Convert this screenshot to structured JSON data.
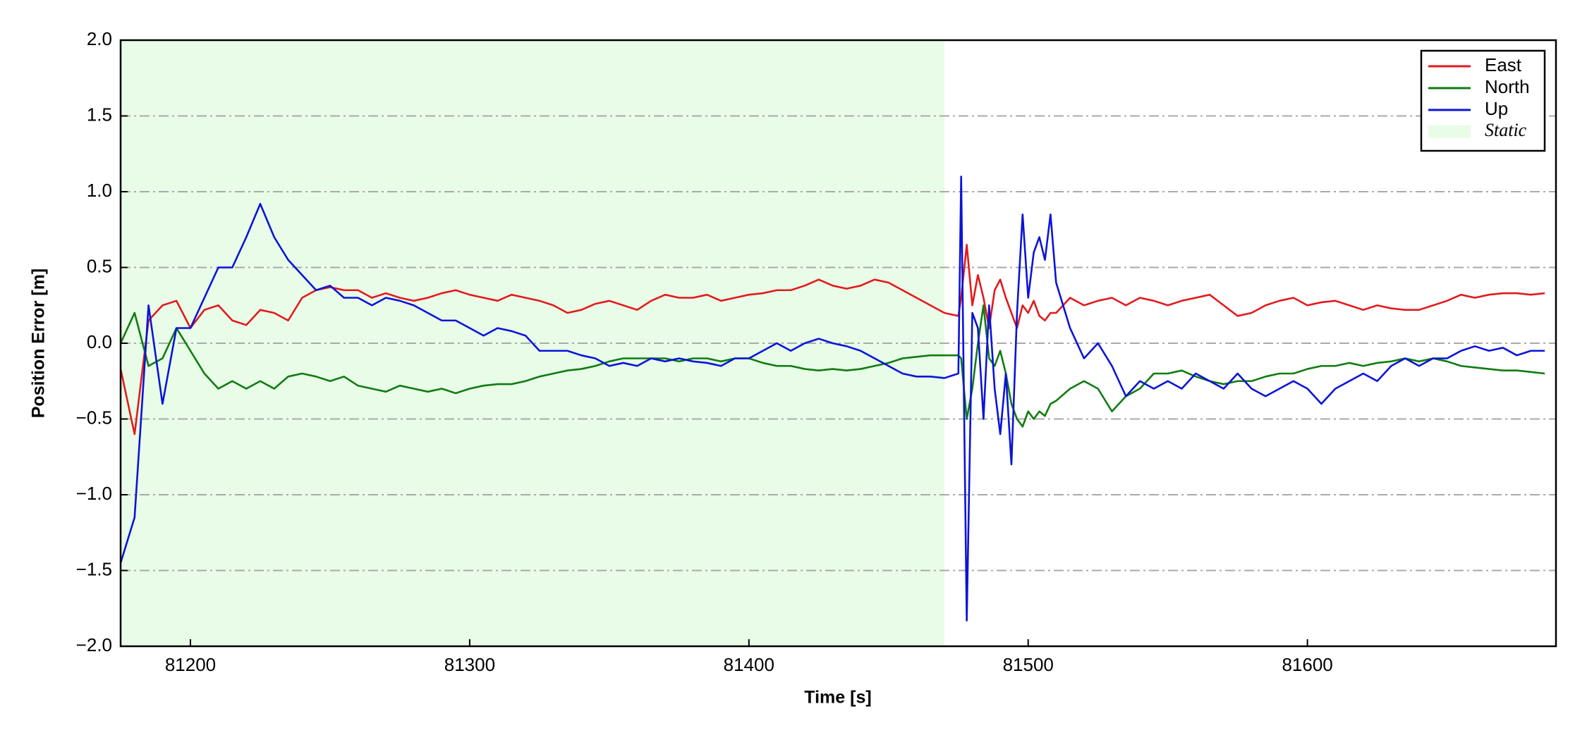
{
  "chart_data": {
    "type": "line",
    "xlabel": "Time [s]",
    "ylabel": "Position Error [m]",
    "x": [
      81175,
      81180,
      81185,
      81190,
      81195,
      81200,
      81205,
      81210,
      81215,
      81220,
      81225,
      81230,
      81235,
      81240,
      81245,
      81250,
      81255,
      81260,
      81265,
      81270,
      81275,
      81280,
      81285,
      81290,
      81295,
      81300,
      81305,
      81310,
      81315,
      81320,
      81325,
      81330,
      81335,
      81340,
      81345,
      81350,
      81355,
      81360,
      81365,
      81370,
      81375,
      81380,
      81385,
      81390,
      81395,
      81400,
      81405,
      81410,
      81415,
      81420,
      81425,
      81430,
      81435,
      81440,
      81445,
      81450,
      81455,
      81460,
      81465,
      81470,
      81475,
      81476,
      81478,
      81480,
      81482,
      81484,
      81486,
      81488,
      81490,
      81492,
      81494,
      81496,
      81498,
      81500,
      81502,
      81504,
      81506,
      81508,
      81510,
      81515,
      81520,
      81525,
      81530,
      81535,
      81540,
      81545,
      81550,
      81555,
      81560,
      81565,
      81570,
      81575,
      81580,
      81585,
      81590,
      81595,
      81600,
      81605,
      81610,
      81615,
      81620,
      81625,
      81630,
      81635,
      81640,
      81645,
      81650,
      81655,
      81660,
      81665,
      81670,
      81675,
      81680,
      81685
    ],
    "series": [
      {
        "name": "East",
        "color": "#e31a1c",
        "values": [
          -0.17,
          -0.6,
          0.15,
          0.25,
          0.28,
          0.1,
          0.22,
          0.25,
          0.15,
          0.12,
          0.22,
          0.2,
          0.15,
          0.3,
          0.35,
          0.37,
          0.35,
          0.35,
          0.3,
          0.33,
          0.3,
          0.28,
          0.3,
          0.33,
          0.35,
          0.32,
          0.3,
          0.28,
          0.32,
          0.3,
          0.28,
          0.25,
          0.2,
          0.22,
          0.26,
          0.28,
          0.25,
          0.22,
          0.28,
          0.32,
          0.3,
          0.3,
          0.32,
          0.28,
          0.3,
          0.32,
          0.33,
          0.35,
          0.35,
          0.38,
          0.42,
          0.38,
          0.36,
          0.38,
          0.42,
          0.4,
          0.35,
          0.3,
          0.25,
          0.2,
          0.18,
          0.3,
          0.65,
          0.25,
          0.45,
          0.3,
          0.1,
          0.35,
          0.42,
          0.3,
          0.2,
          0.1,
          0.25,
          0.2,
          0.28,
          0.18,
          0.15,
          0.2,
          0.2,
          0.3,
          0.25,
          0.28,
          0.3,
          0.25,
          0.3,
          0.28,
          0.25,
          0.28,
          0.3,
          0.32,
          0.25,
          0.18,
          0.2,
          0.25,
          0.28,
          0.3,
          0.25,
          0.27,
          0.28,
          0.25,
          0.22,
          0.25,
          0.23,
          0.22,
          0.22,
          0.25,
          0.28,
          0.32,
          0.3,
          0.32,
          0.33,
          0.33,
          0.32,
          0.33
        ]
      },
      {
        "name": "North",
        "color": "#107c10",
        "values": [
          0.0,
          0.2,
          -0.15,
          -0.1,
          0.1,
          -0.05,
          -0.2,
          -0.3,
          -0.25,
          -0.3,
          -0.25,
          -0.3,
          -0.22,
          -0.2,
          -0.22,
          -0.25,
          -0.22,
          -0.28,
          -0.3,
          -0.32,
          -0.28,
          -0.3,
          -0.32,
          -0.3,
          -0.33,
          -0.3,
          -0.28,
          -0.27,
          -0.27,
          -0.25,
          -0.22,
          -0.2,
          -0.18,
          -0.17,
          -0.15,
          -0.12,
          -0.1,
          -0.1,
          -0.1,
          -0.1,
          -0.12,
          -0.1,
          -0.1,
          -0.12,
          -0.1,
          -0.1,
          -0.13,
          -0.15,
          -0.15,
          -0.17,
          -0.18,
          -0.17,
          -0.18,
          -0.17,
          -0.15,
          -0.13,
          -0.1,
          -0.09,
          -0.08,
          -0.08,
          -0.08,
          -0.1,
          -0.5,
          -0.3,
          0.0,
          0.25,
          -0.1,
          -0.15,
          -0.05,
          -0.2,
          -0.4,
          -0.5,
          -0.55,
          -0.45,
          -0.5,
          -0.45,
          -0.48,
          -0.4,
          -0.38,
          -0.3,
          -0.25,
          -0.3,
          -0.45,
          -0.35,
          -0.3,
          -0.2,
          -0.2,
          -0.18,
          -0.22,
          -0.25,
          -0.27,
          -0.25,
          -0.25,
          -0.22,
          -0.2,
          -0.2,
          -0.17,
          -0.15,
          -0.15,
          -0.13,
          -0.15,
          -0.13,
          -0.12,
          -0.1,
          -0.12,
          -0.1,
          -0.12,
          -0.15,
          -0.16,
          -0.17,
          -0.18,
          -0.18,
          -0.19,
          -0.2
        ]
      },
      {
        "name": "Up",
        "color": "#0a14d8",
        "values": [
          -1.45,
          -1.15,
          0.25,
          -0.4,
          0.1,
          0.1,
          0.3,
          0.5,
          0.5,
          0.7,
          0.92,
          0.7,
          0.55,
          0.45,
          0.35,
          0.38,
          0.3,
          0.3,
          0.25,
          0.3,
          0.28,
          0.25,
          0.2,
          0.15,
          0.15,
          0.1,
          0.05,
          0.1,
          0.08,
          0.05,
          -0.05,
          -0.05,
          -0.05,
          -0.08,
          -0.1,
          -0.15,
          -0.13,
          -0.15,
          -0.1,
          -0.12,
          -0.1,
          -0.12,
          -0.13,
          -0.15,
          -0.1,
          -0.1,
          -0.05,
          0.0,
          -0.05,
          0.0,
          0.03,
          0.0,
          -0.02,
          -0.05,
          -0.1,
          -0.15,
          -0.2,
          -0.22,
          -0.22,
          -0.23,
          -0.2,
          1.1,
          -1.83,
          0.2,
          0.1,
          -0.5,
          0.25,
          -0.3,
          -0.6,
          -0.2,
          -0.8,
          0.2,
          0.85,
          0.3,
          0.6,
          0.7,
          0.55,
          0.85,
          0.4,
          0.1,
          -0.1,
          0.0,
          -0.15,
          -0.35,
          -0.25,
          -0.3,
          -0.25,
          -0.3,
          -0.2,
          -0.25,
          -0.3,
          -0.2,
          -0.3,
          -0.35,
          -0.3,
          -0.25,
          -0.3,
          -0.4,
          -0.3,
          -0.25,
          -0.2,
          -0.25,
          -0.15,
          -0.1,
          -0.15,
          -0.1,
          -0.1,
          -0.05,
          -0.02,
          -0.05,
          -0.03,
          -0.08,
          -0.05,
          -0.05
        ]
      }
    ],
    "static_region": {
      "name": "Static",
      "x": [
        81175,
        81470
      ],
      "color": "#e8fce8"
    },
    "xlim": [
      81175,
      81689
    ],
    "ylim": [
      -2,
      2
    ],
    "xticks": [
      81200,
      81300,
      81400,
      81500,
      81600
    ],
    "yticks": [
      {
        "value": -2,
        "label": "−2.0"
      },
      {
        "value": -1.5,
        "label": "−1.5"
      },
      {
        "value": -1,
        "label": "−1.0"
      },
      {
        "value": -0.5,
        "label": "−0.5"
      },
      {
        "value": 0,
        "label": "0.0"
      },
      0.5,
      {
        "value": 1,
        "label": "1.0"
      },
      1.5,
      {
        "value": 2,
        "label": "2.0"
      }
    ],
    "grid": true,
    "legend": "upper right"
  }
}
